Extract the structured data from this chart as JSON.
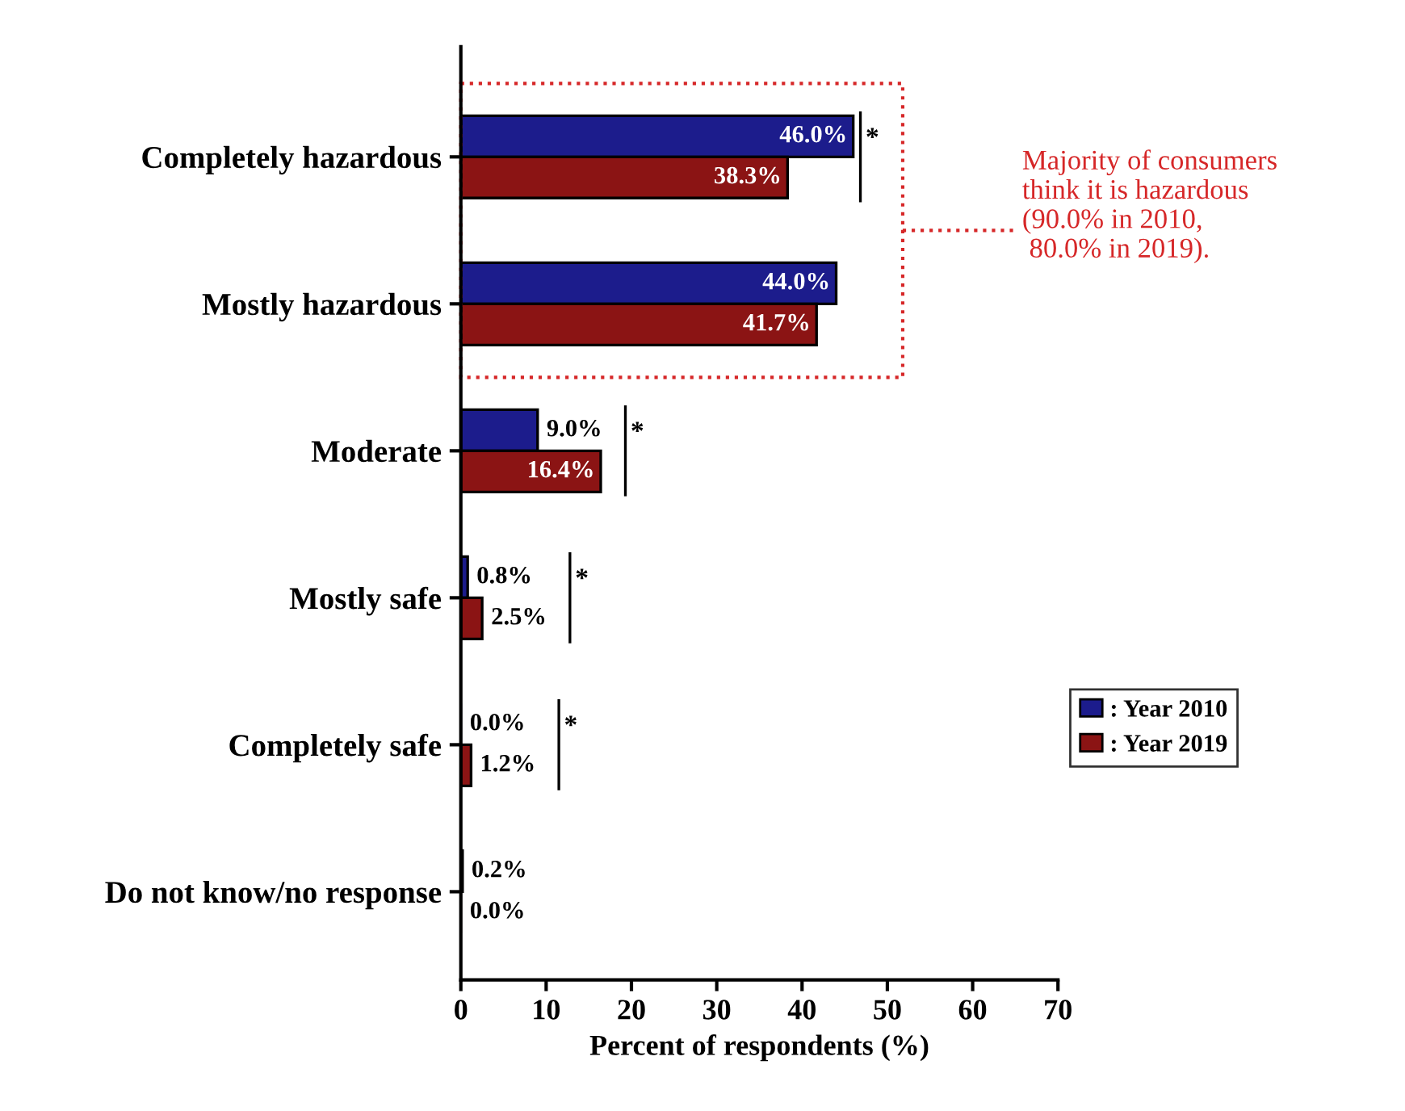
{
  "chart_data": {
    "type": "bar",
    "orientation": "horizontal",
    "xlabel": "Percent of respondents (%)",
    "categories": [
      "Completely hazardous",
      "Mostly hazardous",
      "Moderate",
      "Mostly safe",
      "Completely safe",
      "Do not know/no response"
    ],
    "series": [
      {
        "name": ": Year 2010",
        "color": "#1c1c8c",
        "values": [
          46.0,
          44.0,
          9.0,
          0.8,
          0.0,
          0.2
        ],
        "value_labels": [
          "46.0%",
          "44.0%",
          "9.0%",
          "0.8%",
          "0.0%",
          "0.2%"
        ]
      },
      {
        "name": ": Year 2019",
        "color": "#8b1414",
        "values": [
          38.3,
          41.7,
          16.4,
          2.5,
          1.2,
          0.0
        ],
        "value_labels": [
          "38.3%",
          "41.7%",
          "16.4%",
          "2.5%",
          "1.2%",
          "0.0%"
        ]
      }
    ],
    "xlim": [
      0,
      70
    ],
    "xticks": [
      0,
      10,
      20,
      30,
      40,
      50,
      60,
      70
    ],
    "grid": false,
    "legend": "right",
    "annotations": [
      "*",
      "*",
      "*",
      "*",
      "Majority of consumers\nthink it is hazardous\n(90.0% in 2010,\n 80.0% in 2019)."
    ]
  }
}
